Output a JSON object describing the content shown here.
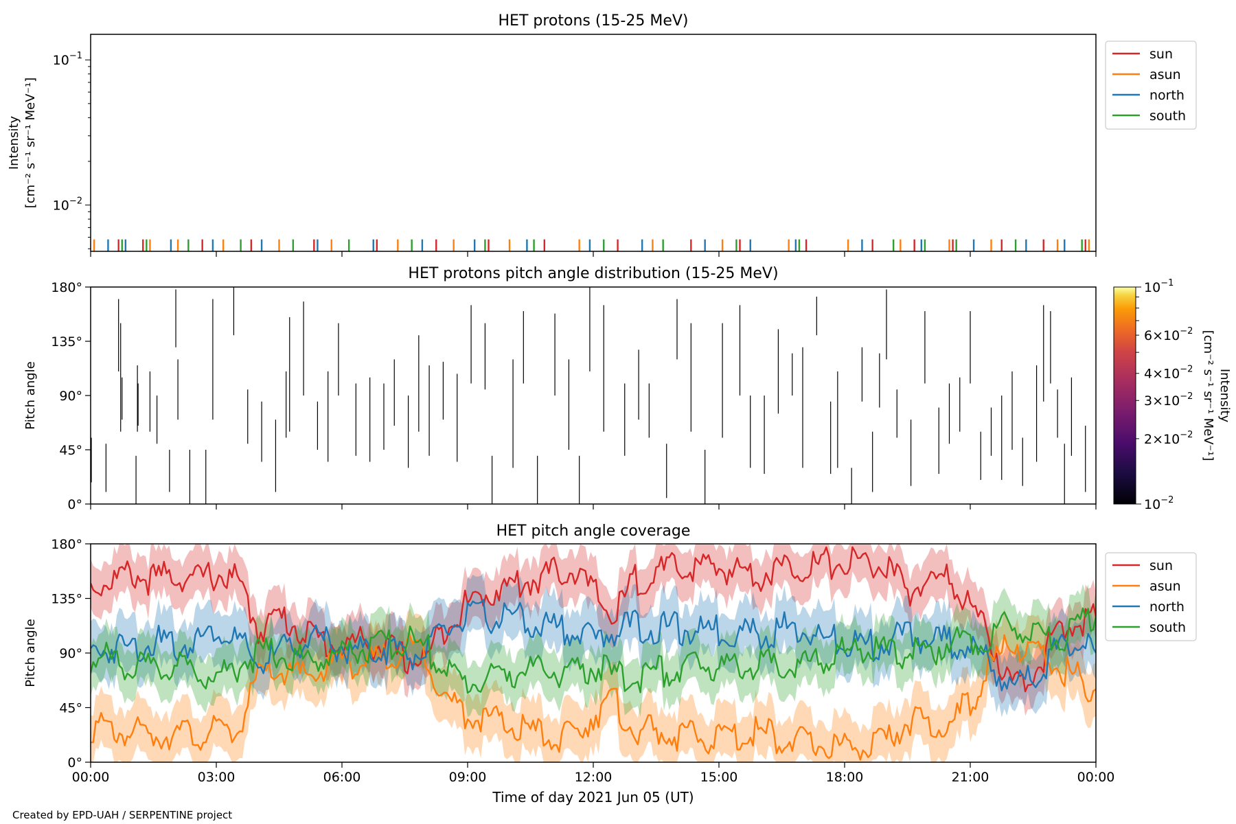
{
  "footer": {
    "credit": "Created by EPD-UAH / SERPENTINE project"
  },
  "colors": {
    "sun": "#d62728",
    "asun": "#ff7f0e",
    "north": "#1f77b4",
    "south": "#2ca02c"
  },
  "chart_data": [
    {
      "type": "bar",
      "title": "HET protons (15-25 MeV)",
      "ylabel_line1": "Intensity",
      "ylabel_line2": "[cm⁻² s⁻¹ sr⁻¹ MeV⁻¹]",
      "yscale": "log",
      "ylim": [
        0.0048,
        0.15
      ],
      "yticks": [
        {
          "value": 0.1,
          "base": "10",
          "exp": "−1"
        },
        {
          "value": 0.01,
          "base": "10",
          "exp": "−2"
        }
      ],
      "legend": {
        "position": "outside-right-top",
        "entries": [
          "sun",
          "asun",
          "north",
          "south"
        ]
      },
      "xlim": [
        "2021-06-05T00:00",
        "2021-06-06T00:00"
      ],
      "bar_value": 0.0058,
      "series": [
        {
          "name": "sun",
          "color": "#d62728",
          "x": [
            "00:40",
            "01:15",
            "02:40",
            "03:50",
            "05:20",
            "06:50",
            "08:15",
            "09:30",
            "10:50",
            "12:35",
            "14:20",
            "15:30",
            "17:05",
            "18:40",
            "19:40",
            "20:35",
            "21:45",
            "22:45",
            "23:45"
          ]
        },
        {
          "name": "asun",
          "color": "#ff7f0e",
          "x": [
            "00:05",
            "01:25",
            "02:05",
            "03:10",
            "04:30",
            "05:45",
            "07:20",
            "08:40",
            "10:00",
            "11:40",
            "13:25",
            "15:05",
            "16:40",
            "18:05",
            "19:20",
            "20:30",
            "21:30",
            "23:05",
            "23:50"
          ]
        },
        {
          "name": "north",
          "color": "#1f77b4",
          "x": [
            "00:25",
            "00:50",
            "01:55",
            "02:55",
            "04:05",
            "05:25",
            "06:45",
            "07:55",
            "09:10",
            "10:25",
            "11:55",
            "13:10",
            "14:40",
            "15:45",
            "16:50",
            "18:25",
            "19:50",
            "21:05",
            "22:20",
            "23:15"
          ]
        },
        {
          "name": "south",
          "color": "#2ca02c",
          "x": [
            "00:45",
            "01:20",
            "02:20",
            "03:35",
            "04:50",
            "06:10",
            "07:40",
            "09:25",
            "10:35",
            "12:15",
            "13:40",
            "15:25",
            "16:55",
            "19:10",
            "19:55",
            "20:40",
            "22:05",
            "23:40"
          ]
        }
      ]
    },
    {
      "type": "heatmap",
      "title": "HET protons pitch angle distribution (15-25 MeV)",
      "ylabel": "Pitch angle",
      "ylim": [
        0,
        180
      ],
      "yticks": [
        "0°",
        "45°",
        "90°",
        "135°",
        "180°"
      ],
      "colorbar": {
        "label_line1": "Intensity",
        "label_line2": "[cm⁻² s⁻¹ sr⁻¹ MeV⁻¹]",
        "scale": "log",
        "range": [
          0.01,
          0.1
        ],
        "colormap": "inferno",
        "ticks": [
          {
            "value": 0.1,
            "label": "10",
            "exp": "−1",
            "form": "pow"
          },
          {
            "value": 0.06,
            "label": "6",
            "exp": "−2",
            "form": "mult"
          },
          {
            "value": 0.04,
            "label": "4",
            "exp": "−2",
            "form": "mult"
          },
          {
            "value": 0.03,
            "label": "3",
            "exp": "−2",
            "form": "mult"
          },
          {
            "value": 0.02,
            "label": "2",
            "exp": "−2",
            "form": "mult"
          },
          {
            "value": 0.01,
            "label": "10",
            "exp": "−2",
            "form": "pow"
          }
        ]
      },
      "segments": [
        [
          "00:01",
          18,
          55
        ],
        [
          "00:22",
          10,
          50
        ],
        [
          "00:40",
          110,
          170
        ],
        [
          "00:43",
          60,
          150
        ],
        [
          "00:45",
          70,
          105
        ],
        [
          "01:05",
          0,
          40
        ],
        [
          "01:07",
          60,
          115
        ],
        [
          "01:08",
          65,
          100
        ],
        [
          "01:25",
          60,
          110
        ],
        [
          "01:35",
          50,
          90
        ],
        [
          "01:53",
          10,
          45
        ],
        [
          "02:02",
          130,
          178
        ],
        [
          "02:05",
          70,
          120
        ],
        [
          "02:22",
          0,
          45
        ],
        [
          "02:45",
          0,
          45
        ],
        [
          "02:55",
          70,
          170
        ],
        [
          "03:25",
          140,
          180
        ],
        [
          "03:45",
          50,
          95
        ],
        [
          "04:05",
          35,
          85
        ],
        [
          "04:25",
          10,
          70
        ],
        [
          "04:40",
          55,
          110
        ],
        [
          "04:45",
          60,
          155
        ],
        [
          "05:05",
          90,
          168
        ],
        [
          "05:25",
          45,
          85
        ],
        [
          "05:40",
          35,
          110
        ],
        [
          "05:55",
          90,
          150
        ],
        [
          "06:20",
          40,
          100
        ],
        [
          "06:40",
          35,
          105
        ],
        [
          "07:00",
          45,
          100
        ],
        [
          "07:15",
          65,
          120
        ],
        [
          "07:35",
          30,
          90
        ],
        [
          "07:50",
          60,
          140
        ],
        [
          "08:05",
          40,
          115
        ],
        [
          "08:25",
          70,
          118
        ],
        [
          "08:45",
          35,
          108
        ],
        [
          "09:05",
          100,
          165
        ],
        [
          "09:25",
          95,
          150
        ],
        [
          "09:35",
          0,
          40
        ],
        [
          "10:05",
          30,
          120
        ],
        [
          "10:20",
          100,
          160
        ],
        [
          "10:40",
          0,
          40
        ],
        [
          "11:05",
          90,
          158
        ],
        [
          "11:25",
          45,
          120
        ],
        [
          "11:40",
          0,
          40
        ],
        [
          "11:55",
          110,
          180
        ],
        [
          "12:15",
          60,
          165
        ],
        [
          "12:45",
          40,
          100
        ],
        [
          "13:05",
          70,
          128
        ],
        [
          "13:20",
          55,
          100
        ],
        [
          "13:45",
          5,
          50
        ],
        [
          "14:00",
          120,
          170
        ],
        [
          "14:20",
          60,
          150
        ],
        [
          "14:40",
          0,
          45
        ],
        [
          "15:05",
          55,
          150
        ],
        [
          "15:30",
          90,
          165
        ],
        [
          "15:45",
          30,
          90
        ],
        [
          "16:05",
          25,
          90
        ],
        [
          "16:25",
          75,
          145
        ],
        [
          "16:45",
          90,
          125
        ],
        [
          "17:00",
          30,
          130
        ],
        [
          "17:20",
          140,
          172
        ],
        [
          "17:40",
          25,
          85
        ],
        [
          "17:50",
          30,
          110
        ],
        [
          "18:10",
          0,
          30
        ],
        [
          "18:25",
          85,
          130
        ],
        [
          "18:40",
          10,
          60
        ],
        [
          "18:50",
          80,
          125
        ],
        [
          "19:00",
          120,
          178
        ],
        [
          "19:15",
          55,
          95
        ],
        [
          "19:35",
          15,
          70
        ],
        [
          "19:55",
          100,
          160
        ],
        [
          "20:15",
          25,
          80
        ],
        [
          "20:30",
          50,
          100
        ],
        [
          "20:45",
          60,
          105
        ],
        [
          "21:00",
          100,
          160
        ],
        [
          "21:15",
          20,
          60
        ],
        [
          "21:30",
          40,
          80
        ],
        [
          "21:45",
          20,
          90
        ],
        [
          "22:00",
          45,
          110
        ],
        [
          "22:15",
          15,
          55
        ],
        [
          "22:35",
          35,
          115
        ],
        [
          "22:45",
          85,
          165
        ],
        [
          "22:55",
          100,
          160
        ],
        [
          "23:05",
          55,
          95
        ],
        [
          "23:15",
          0,
          50
        ],
        [
          "23:25",
          40,
          105
        ],
        [
          "23:45",
          10,
          65
        ]
      ]
    },
    {
      "type": "area",
      "title": "HET pitch angle coverage",
      "ylabel": "Pitch angle",
      "xlabel": "Time of day 2021 Jun 05 (UT)",
      "ylim": [
        0,
        180
      ],
      "yticks": [
        "0°",
        "45°",
        "90°",
        "135°",
        "180°"
      ],
      "xticks": [
        "00:00",
        "03:00",
        "06:00",
        "09:00",
        "12:00",
        "15:00",
        "18:00",
        "21:00",
        "00:00"
      ],
      "xtick_hours": [
        0,
        3,
        6,
        9,
        12,
        15,
        18,
        21,
        24
      ],
      "legend": {
        "position": "outside-right-top",
        "entries": [
          "sun",
          "asun",
          "north",
          "south"
        ]
      },
      "x_hours": [
        0,
        0.5,
        1,
        1.5,
        2,
        2.5,
        3,
        3.5,
        4,
        4.5,
        5,
        5.5,
        6,
        6.5,
        7,
        7.5,
        8,
        8.5,
        9,
        9.5,
        10,
        10.5,
        11,
        11.5,
        12,
        12.5,
        13,
        13.5,
        14,
        14.5,
        15,
        15.5,
        16,
        16.5,
        17,
        17.5,
        18,
        18.5,
        19,
        19.5,
        20,
        20.5,
        21,
        21.5,
        22,
        22.5,
        23,
        23.5,
        24
      ],
      "series": [
        {
          "name": "sun",
          "color": "#d62728",
          "halfwidth": 20,
          "values": [
            145,
            150,
            155,
            150,
            155,
            150,
            155,
            150,
            110,
            120,
            110,
            100,
            95,
            100,
            95,
            85,
            85,
            115,
            130,
            140,
            145,
            150,
            155,
            160,
            140,
            120,
            150,
            155,
            160,
            160,
            160,
            158,
            155,
            160,
            162,
            163,
            165,
            165,
            160,
            140,
            150,
            150,
            130,
            100,
            60,
            75,
            100,
            115,
            120
          ]
        },
        {
          "name": "asun",
          "color": "#ff7f0e",
          "halfwidth": 22,
          "values": [
            30,
            25,
            25,
            22,
            25,
            22,
            25,
            25,
            70,
            75,
            70,
            75,
            85,
            80,
            85,
            95,
            90,
            50,
            40,
            35,
            30,
            25,
            20,
            20,
            40,
            50,
            25,
            25,
            22,
            20,
            20,
            22,
            25,
            20,
            15,
            15,
            12,
            12,
            15,
            35,
            30,
            30,
            50,
            80,
            100,
            90,
            80,
            70,
            60
          ]
        },
        {
          "name": "north",
          "color": "#1f77b4",
          "halfwidth": 22,
          "values": [
            90,
            95,
            95,
            100,
            95,
            100,
            110,
            100,
            80,
            90,
            100,
            100,
            95,
            90,
            95,
            90,
            90,
            110,
            120,
            120,
            120,
            115,
            110,
            110,
            100,
            110,
            112,
            110,
            110,
            108,
            108,
            108,
            105,
            110,
            110,
            100,
            100,
            95,
            100,
            105,
            100,
            100,
            95,
            80,
            60,
            70,
            90,
            100,
            90
          ]
        },
        {
          "name": "south",
          "color": "#2ca02c",
          "halfwidth": 20,
          "values": [
            85,
            85,
            80,
            75,
            80,
            75,
            70,
            80,
            90,
            90,
            85,
            85,
            90,
            95,
            95,
            100,
            95,
            75,
            65,
            70,
            75,
            75,
            75,
            72,
            80,
            70,
            70,
            75,
            75,
            80,
            80,
            80,
            80,
            80,
            80,
            85,
            90,
            95,
            90,
            90,
            90,
            100,
            100,
            105,
            115,
            110,
            100,
            110,
            120
          ]
        }
      ]
    }
  ]
}
